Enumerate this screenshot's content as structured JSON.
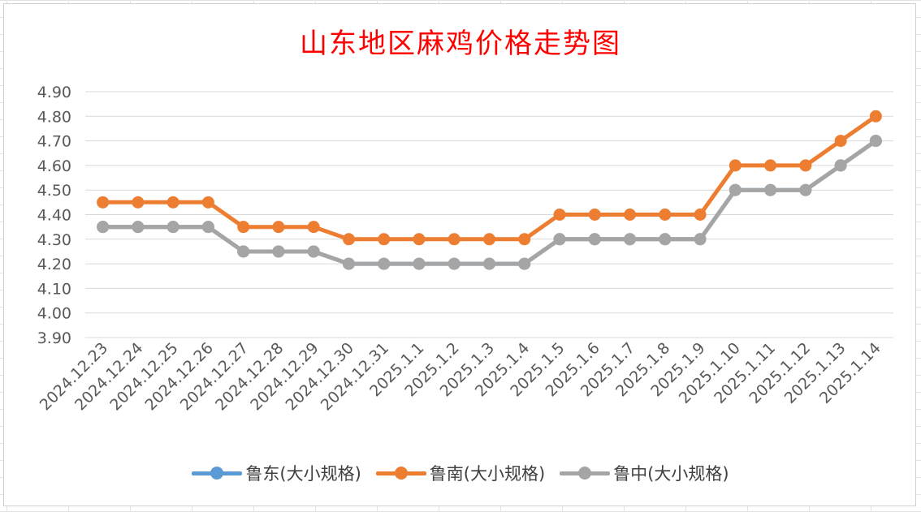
{
  "chart_data": {
    "type": "line",
    "title": "山东地区麻鸡价格走势图",
    "categories": [
      "2024.12.23",
      "2024.12.24",
      "2024.12.25",
      "2024.12.26",
      "2024.12.27",
      "2024.12.28",
      "2024.12.29",
      "2024.12.30",
      "2024.12.31",
      "2025.1.1",
      "2025.1.2",
      "2025.1.3",
      "2025.1.4",
      "2025.1.5",
      "2025.1.6",
      "2025.1.7",
      "2025.1.8",
      "2025.1.9",
      "2025.1.10",
      "2025.1.11",
      "2025.1.12",
      "2025.1.13",
      "2025.1.14"
    ],
    "series": [
      {
        "name": "鲁东(大小规格)",
        "color": "#5b9bd5",
        "values": [
          4.35,
          4.35,
          4.35,
          4.35,
          4.25,
          4.25,
          4.25,
          4.2,
          4.2,
          4.2,
          4.2,
          4.2,
          4.2,
          4.3,
          4.3,
          4.3,
          4.3,
          4.3,
          4.5,
          4.5,
          4.5,
          4.6,
          4.7
        ]
      },
      {
        "name": "鲁南(大小规格)",
        "color": "#ed7d31",
        "values": [
          4.45,
          4.45,
          4.45,
          4.45,
          4.35,
          4.35,
          4.35,
          4.3,
          4.3,
          4.3,
          4.3,
          4.3,
          4.3,
          4.4,
          4.4,
          4.4,
          4.4,
          4.4,
          4.6,
          4.6,
          4.6,
          4.7,
          4.8
        ]
      },
      {
        "name": "鲁中(大小规格)",
        "color": "#a5a5a5",
        "values": [
          4.35,
          4.35,
          4.35,
          4.35,
          4.25,
          4.25,
          4.25,
          4.2,
          4.2,
          4.2,
          4.2,
          4.2,
          4.2,
          4.3,
          4.3,
          4.3,
          4.3,
          4.3,
          4.5,
          4.5,
          4.5,
          4.6,
          4.7
        ]
      }
    ],
    "yticks": [
      "3.90",
      "4.00",
      "4.10",
      "4.20",
      "4.30",
      "4.40",
      "4.50",
      "4.60",
      "4.70",
      "4.80",
      "4.90"
    ],
    "ylim": [
      3.9,
      4.9
    ],
    "xlabel": "",
    "ylabel": "",
    "grid": true,
    "legend_position": "bottom"
  }
}
